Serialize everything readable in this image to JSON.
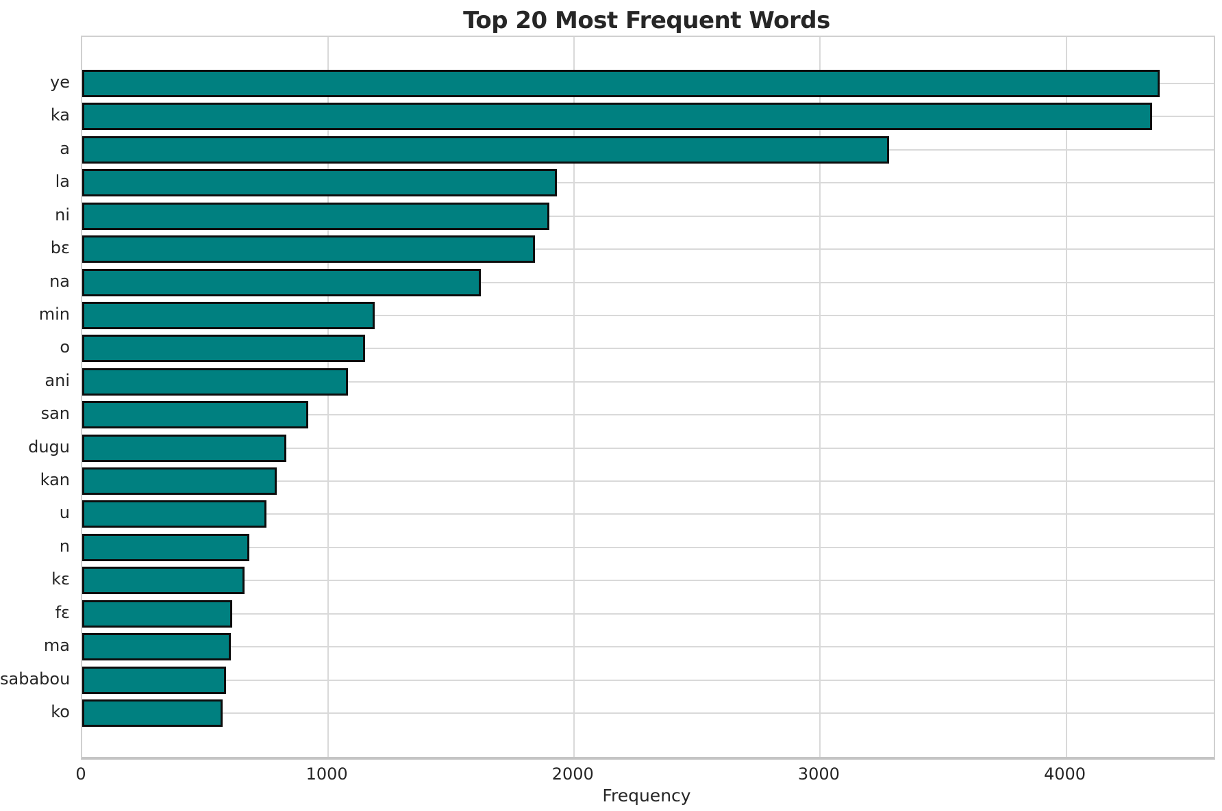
{
  "chart_data": {
    "type": "bar",
    "orientation": "horizontal",
    "title": "Top 20 Most Frequent Words",
    "xlabel": "Frequency",
    "ylabel": "",
    "categories": [
      "ye",
      "ka",
      "a",
      "la",
      "ni",
      "bɛ",
      "na",
      "min",
      "o",
      "ani",
      "san",
      "dugu",
      "kan",
      "u",
      "n",
      "kɛ",
      "fɛ",
      "ma",
      "sababou",
      "ko"
    ],
    "values": [
      4380,
      4350,
      3280,
      1930,
      1900,
      1840,
      1620,
      1190,
      1150,
      1080,
      920,
      830,
      790,
      750,
      680,
      660,
      610,
      605,
      585,
      570
    ],
    "xlim": [
      0,
      4600
    ],
    "x_ticks": [
      0,
      1000,
      2000,
      3000,
      4000
    ],
    "grid": "both",
    "legend": "none",
    "bar_color": "#008080",
    "bar_edge_color": "#0d0d0d",
    "grid_color": "#d9d9d9",
    "text_color": "#262626"
  }
}
